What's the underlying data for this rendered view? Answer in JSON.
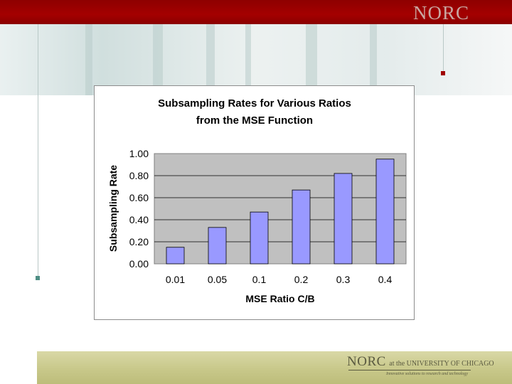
{
  "brand": {
    "header_logo": "NORC",
    "footer_logo_main": "NORC",
    "footer_logo_sub": "at the UNIVERSITY OF CHICAGO",
    "footer_tagline": "Innovative solutions to research and technology"
  },
  "colors": {
    "header": "#a00000",
    "bar_fill": "#9999ff",
    "plot_bg": "#c0c0c0",
    "footer": "#cdcd8e"
  },
  "chart_data": {
    "type": "bar",
    "title_line1": "Subsampling Rates for Various Ratios",
    "title_line2": "from the MSE Function",
    "xlabel": "MSE Ratio C/B",
    "ylabel": "Subsampling Rate",
    "categories": [
      "0.01",
      "0.05",
      "0.1",
      "0.2",
      "0.3",
      "0.4"
    ],
    "values": [
      0.15,
      0.33,
      0.47,
      0.67,
      0.82,
      0.95
    ],
    "ylim": [
      0,
      1.0
    ],
    "yticks": [
      "0.00",
      "0.20",
      "0.40",
      "0.60",
      "0.80",
      "1.00"
    ],
    "grid": true,
    "legend": "none"
  }
}
